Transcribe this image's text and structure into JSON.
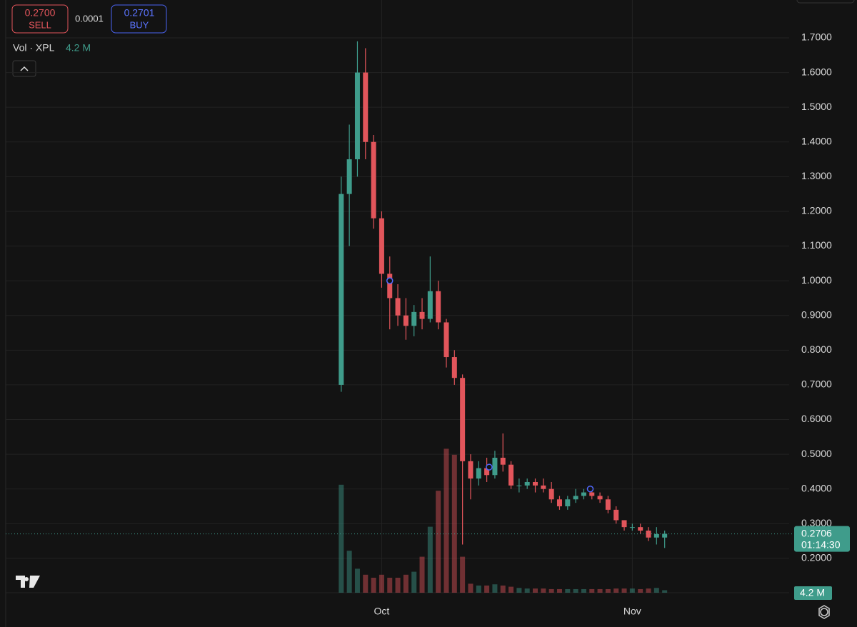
{
  "quote": {
    "sell": {
      "price": "0.2700",
      "label": "SELL"
    },
    "spread": "0.0001",
    "buy": {
      "price": "0.2701",
      "label": "BUY"
    }
  },
  "chart_data": {
    "type": "candlestick",
    "up_color": "#3f9c8b",
    "down_color": "#e2555b",
    "grid": true,
    "xlim": [
      -46.5,
      50.4
    ],
    "xticks": [
      {
        "value": 0,
        "label": "Oct"
      },
      {
        "value": 31,
        "label": "Nov"
      }
    ],
    "ylim": [
      0.101,
      1.809
    ],
    "yticks": [
      {
        "value": 0.2,
        "label": "0.2000"
      },
      {
        "value": 0.3,
        "label": "0.3000"
      },
      {
        "value": 0.4,
        "label": "0.4000"
      },
      {
        "value": 0.5,
        "label": "0.5000"
      },
      {
        "value": 0.6,
        "label": "0.6000"
      },
      {
        "value": 0.7,
        "label": "0.7000"
      },
      {
        "value": 0.8,
        "label": "0.8000"
      },
      {
        "value": 0.9,
        "label": "0.9000"
      },
      {
        "value": 1.0,
        "label": "1.0000"
      },
      {
        "value": 1.1,
        "label": "1.1000"
      },
      {
        "value": 1.2,
        "label": "1.2000"
      },
      {
        "value": 1.3,
        "label": "1.3000"
      },
      {
        "value": 1.4,
        "label": "1.4000"
      },
      {
        "value": 1.5,
        "label": "1.5000"
      },
      {
        "value": 1.6,
        "label": "1.6000"
      },
      {
        "value": 1.7,
        "label": "1.7000"
      }
    ],
    "x": [
      -5,
      -4,
      -3,
      -2,
      -1,
      0,
      1,
      2,
      3,
      4,
      5,
      6,
      7,
      8,
      9,
      10,
      11,
      12,
      13,
      14,
      15,
      16,
      17,
      18,
      19,
      20,
      21,
      22,
      23,
      24,
      25,
      26,
      27,
      28,
      29,
      30,
      31,
      32,
      33,
      34,
      35
    ],
    "open": [
      0.7,
      1.25,
      1.35,
      1.6,
      1.4,
      1.18,
      1.02,
      0.95,
      0.9,
      0.87,
      0.91,
      0.89,
      0.97,
      0.88,
      0.78,
      0.72,
      0.48,
      0.43,
      0.46,
      0.44,
      0.49,
      0.47,
      0.41,
      0.41,
      0.42,
      0.41,
      0.4,
      0.37,
      0.35,
      0.37,
      0.38,
      0.39,
      0.38,
      0.37,
      0.34,
      0.31,
      0.29,
      0.29,
      0.28,
      0.26,
      0.26
    ],
    "high": [
      1.3,
      1.45,
      1.69,
      1.67,
      1.42,
      1.2,
      1.07,
      0.99,
      0.95,
      0.93,
      0.95,
      1.07,
      1.0,
      0.89,
      0.8,
      0.73,
      0.5,
      0.48,
      0.49,
      0.51,
      0.56,
      0.48,
      0.43,
      0.43,
      0.43,
      0.43,
      0.42,
      0.38,
      0.38,
      0.4,
      0.4,
      0.4,
      0.39,
      0.38,
      0.35,
      0.31,
      0.3,
      0.3,
      0.29,
      0.29,
      0.28
    ],
    "low": [
      0.68,
      1.1,
      1.3,
      1.35,
      1.15,
      0.98,
      0.86,
      0.87,
      0.83,
      0.84,
      0.86,
      0.88,
      0.86,
      0.75,
      0.7,
      0.24,
      0.37,
      0.41,
      0.42,
      0.43,
      0.45,
      0.4,
      0.39,
      0.4,
      0.39,
      0.39,
      0.36,
      0.34,
      0.34,
      0.36,
      0.37,
      0.37,
      0.36,
      0.33,
      0.3,
      0.28,
      0.28,
      0.27,
      0.25,
      0.24,
      0.23
    ],
    "close": [
      1.25,
      1.35,
      1.6,
      1.4,
      1.18,
      1.02,
      0.95,
      0.9,
      0.87,
      0.91,
      0.89,
      0.97,
      0.88,
      0.78,
      0.72,
      0.48,
      0.43,
      0.46,
      0.44,
      0.49,
      0.47,
      0.41,
      0.41,
      0.42,
      0.41,
      0.4,
      0.37,
      0.35,
      0.37,
      0.38,
      0.39,
      0.38,
      0.37,
      0.34,
      0.31,
      0.29,
      0.29,
      0.28,
      0.26,
      0.27,
      0.2706
    ],
    "volume": {
      "name": "Vol · XPL",
      "ylim": [
        0,
        250
      ],
      "values": [
        180,
        70,
        40,
        30,
        25,
        30,
        25,
        25,
        30,
        35,
        60,
        110,
        170,
        240,
        230,
        60,
        15,
        12,
        12,
        14,
        12,
        10,
        8,
        7,
        7,
        7,
        6,
        6,
        6,
        6,
        6,
        6,
        6,
        6,
        7,
        7,
        7,
        6,
        7,
        8,
        4.2
      ],
      "last_label": "4.2 M"
    },
    "last_price_countdown": "01:14:30",
    "markers": [
      {
        "x": 1,
        "y": 1.0
      },
      {
        "x": 13.3,
        "y": 0.463
      },
      {
        "x": 25.8,
        "y": 0.4
      }
    ]
  }
}
